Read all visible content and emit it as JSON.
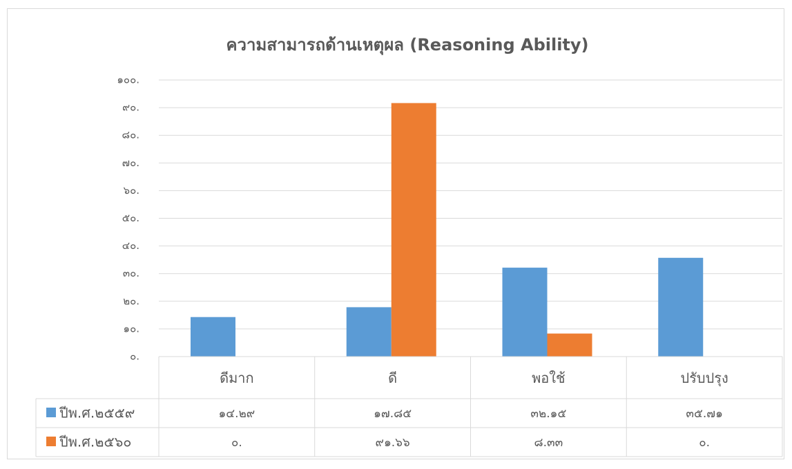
{
  "chart_data": {
    "type": "bar",
    "title": "ความสามารถด้านเหตุผล (Reasoning Ability)",
    "categories": [
      "ดีมาก",
      "ดี",
      "พอใช้",
      "ปรับปรุง"
    ],
    "series": [
      {
        "name": "ปีพ.ศ.๒๕๕๙",
        "color": "#5b9bd5",
        "values": [
          14.29,
          17.85,
          32.15,
          35.71
        ],
        "value_labels": [
          "๑๔.๒๙",
          "๑๗.๘๕",
          "๓๒.๑๕",
          "๓๕.๗๑"
        ]
      },
      {
        "name": "ปีพ.ศ.๒๕๖๐",
        "color": "#ed7d31",
        "values": [
          0,
          91.66,
          8.33,
          0
        ],
        "value_labels": [
          "๐.",
          "๙๑.๖๖",
          "๘.๓๓",
          "๐."
        ]
      }
    ],
    "ylim": [
      0,
      100
    ],
    "yticks": [
      {
        "value": 0,
        "label": "๐."
      },
      {
        "value": 10,
        "label": "๑๐."
      },
      {
        "value": 20,
        "label": "๒๐."
      },
      {
        "value": 30,
        "label": "๓๐."
      },
      {
        "value": 40,
        "label": "๔๐."
      },
      {
        "value": 50,
        "label": "๕๐."
      },
      {
        "value": 60,
        "label": "๖๐."
      },
      {
        "value": 70,
        "label": "๗๐."
      },
      {
        "value": 80,
        "label": "๘๐."
      },
      {
        "value": 90,
        "label": "๙๐."
      },
      {
        "value": 100,
        "label": "๑๐๐."
      }
    ],
    "grid": true
  }
}
